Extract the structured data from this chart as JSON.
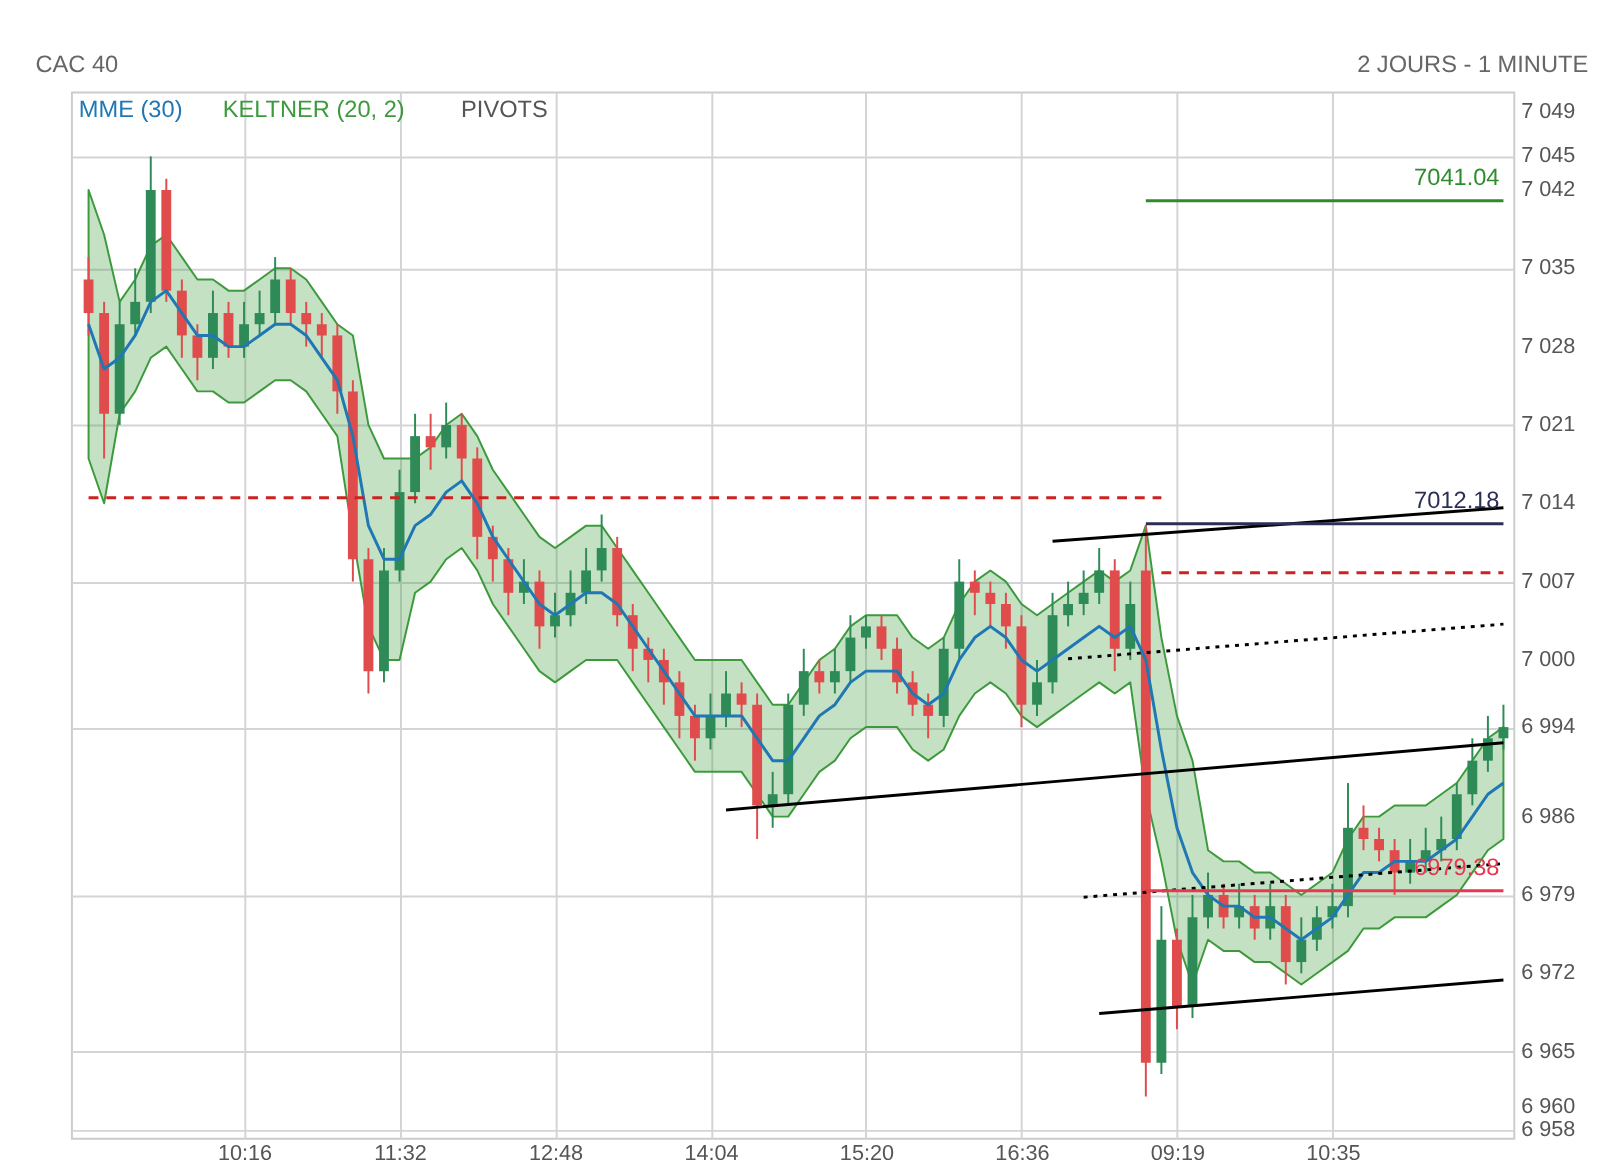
{
  "chart_data": {
    "type": "candlestick",
    "title": "CAC 40",
    "subtitle": "2 JOURS - 1 MINUTE",
    "categories": [
      null,
      null,
      null,
      null,
      null,
      null,
      null,
      null,
      null,
      null,
      "10:16",
      null,
      null,
      null,
      null,
      null,
      null,
      null,
      null,
      null,
      "11:32",
      null,
      null,
      null,
      null,
      null,
      null,
      null,
      null,
      null,
      "12:48",
      null,
      null,
      null,
      null,
      null,
      null,
      null,
      null,
      null,
      "14:04",
      null,
      null,
      null,
      null,
      null,
      null,
      null,
      null,
      null,
      "15:20",
      null,
      null,
      null,
      null,
      null,
      null,
      null,
      null,
      null,
      "16:36",
      null,
      null,
      null,
      null,
      null,
      null,
      null,
      null,
      null,
      "09:19",
      null,
      null,
      null,
      null,
      null,
      null,
      null,
      null,
      null,
      "10:35",
      null,
      null,
      null,
      null,
      null,
      null,
      null,
      null,
      null,
      null,
      null
    ],
    "ohlc": [
      [
        7034,
        7036,
        7029,
        7031
      ],
      [
        7031,
        7032,
        7018,
        7022
      ],
      [
        7022,
        7032,
        7021,
        7030
      ],
      [
        7030,
        7035,
        7029,
        7032
      ],
      [
        7032,
        7045,
        7031,
        7042
      ],
      [
        7042,
        7043,
        7032,
        7033
      ],
      [
        7033,
        7034,
        7027,
        7029
      ],
      [
        7029,
        7030,
        7025,
        7027
      ],
      [
        7027,
        7033,
        7026,
        7031
      ],
      [
        7031,
        7032,
        7027,
        7028
      ],
      [
        7028,
        7032,
        7027,
        7030
      ],
      [
        7030,
        7033,
        7029,
        7031
      ],
      [
        7031,
        7036,
        7030,
        7034
      ],
      [
        7034,
        7035,
        7030,
        7031
      ],
      [
        7031,
        7032,
        7028,
        7030
      ],
      [
        7030,
        7031,
        7027,
        7029
      ],
      [
        7029,
        7030,
        7022,
        7024
      ],
      [
        7024,
        7025,
        7007,
        7009
      ],
      [
        7009,
        7010,
        6997,
        6999
      ],
      [
        6999,
        7010,
        6998,
        7008
      ],
      [
        7008,
        7017,
        7007,
        7015
      ],
      [
        7015,
        7022,
        7014,
        7020
      ],
      [
        7020,
        7022,
        7017,
        7019
      ],
      [
        7019,
        7023,
        7018,
        7021
      ],
      [
        7021,
        7022,
        7016,
        7018
      ],
      [
        7018,
        7019,
        7009,
        7011
      ],
      [
        7011,
        7012,
        7007,
        7009
      ],
      [
        7009,
        7010,
        7004,
        7006
      ],
      [
        7006,
        7009,
        7005,
        7007
      ],
      [
        7007,
        7008,
        7001,
        7003
      ],
      [
        7003,
        7006,
        7002,
        7004
      ],
      [
        7004,
        7008,
        7003,
        7006
      ],
      [
        7006,
        7010,
        7005,
        7008
      ],
      [
        7008,
        7013,
        7007,
        7010
      ],
      [
        7010,
        7011,
        7003,
        7004
      ],
      [
        7004,
        7005,
        6999,
        7001
      ],
      [
        7001,
        7002,
        6998,
        7000
      ],
      [
        7000,
        7001,
        6996,
        6998
      ],
      [
        6998,
        6999,
        6993,
        6995
      ],
      [
        6995,
        6996,
        6991,
        6993
      ],
      [
        6993,
        6997,
        6992,
        6995
      ],
      [
        6995,
        6999,
        6994,
        6997
      ],
      [
        6997,
        6998,
        6994,
        6996
      ],
      [
        6996,
        6997,
        6984,
        6987
      ],
      [
        6987,
        6990,
        6985,
        6988
      ],
      [
        6988,
        6997,
        6987,
        6996
      ],
      [
        6996,
        7001,
        6995,
        6999
      ],
      [
        6999,
        7000,
        6997,
        6998
      ],
      [
        6998,
        7001,
        6997,
        6999
      ],
      [
        6999,
        7004,
        6998,
        7002
      ],
      [
        7002,
        7004,
        7001,
        7003
      ],
      [
        7003,
        7004,
        7000,
        7001
      ],
      [
        7001,
        7002,
        6997,
        6998
      ],
      [
        6998,
        6999,
        6995,
        6996
      ],
      [
        6996,
        6997,
        6993,
        6995
      ],
      [
        6995,
        7002,
        6994,
        7001
      ],
      [
        7001,
        7009,
        7000,
        7007
      ],
      [
        7007,
        7008,
        7004,
        7006
      ],
      [
        7006,
        7007,
        7003,
        7005
      ],
      [
        7005,
        7006,
        7001,
        7003
      ],
      [
        7003,
        7004,
        6994,
        6996
      ],
      [
        6996,
        7000,
        6995,
        6998
      ],
      [
        6998,
        7006,
        6997,
        7004
      ],
      [
        7004,
        7007,
        7003,
        7005
      ],
      [
        7005,
        7008,
        7004,
        7006
      ],
      [
        7006,
        7010,
        7005,
        7008
      ],
      [
        7008,
        7009,
        6999,
        7001
      ],
      [
        7001,
        7007,
        7000,
        7005
      ],
      [
        7008,
        7012,
        6961,
        6964
      ],
      [
        6964,
        6978,
        6963,
        6975
      ],
      [
        6975,
        6976,
        6967,
        6969
      ],
      [
        6969,
        6979,
        6968,
        6977
      ],
      [
        6977,
        6981,
        6976,
        6979
      ],
      [
        6979,
        6980,
        6976,
        6977
      ],
      [
        6977,
        6980,
        6976,
        6978
      ],
      [
        6978,
        6979,
        6975,
        6976
      ],
      [
        6976,
        6980,
        6975,
        6978
      ],
      [
        6978,
        6979,
        6971,
        6973
      ],
      [
        6973,
        6977,
        6972,
        6975
      ],
      [
        6975,
        6978,
        6974,
        6977
      ],
      [
        6977,
        6980,
        6976,
        6978
      ],
      [
        6978,
        6989,
        6977,
        6985
      ],
      [
        6985,
        6987,
        6983,
        6984
      ],
      [
        6984,
        6985,
        6982,
        6983
      ],
      [
        6983,
        6984,
        6979,
        6981
      ],
      [
        6981,
        6984,
        6980,
        6982
      ],
      [
        6982,
        6985,
        6981,
        6983
      ],
      [
        6983,
        6986,
        6982,
        6984
      ],
      [
        6984,
        6989,
        6983,
        6988
      ],
      [
        6988,
        6993,
        6987,
        6991
      ],
      [
        6991,
        6995,
        6990,
        6993
      ],
      [
        6993,
        6996,
        6992,
        6994
      ]
    ],
    "colors": [
      "#e04b4b",
      "#e04b4b",
      "#2e8b57",
      "#2e8b57",
      "#2e8b57",
      "#e04b4b",
      "#e04b4b",
      "#e04b4b",
      "#2e8b57",
      "#e04b4b",
      "#2e8b57",
      "#2e8b57",
      "#2e8b57",
      "#e04b4b",
      "#e04b4b",
      "#e04b4b",
      "#e04b4b",
      "#e04b4b",
      "#e04b4b",
      "#2e8b57",
      "#2e8b57",
      "#2e8b57",
      "#e04b4b",
      "#2e8b57",
      "#e04b4b",
      "#e04b4b",
      "#e04b4b",
      "#e04b4b",
      "#2e8b57",
      "#e04b4b",
      "#2e8b57",
      "#2e8b57",
      "#2e8b57",
      "#2e8b57",
      "#e04b4b",
      "#e04b4b",
      "#e04b4b",
      "#e04b4b",
      "#e04b4b",
      "#e04b4b",
      "#2e8b57",
      "#2e8b57",
      "#e04b4b",
      "#e04b4b",
      "#2e8b57",
      "#2e8b57",
      "#2e8b57",
      "#e04b4b",
      "#2e8b57",
      "#2e8b57",
      "#2e8b57",
      "#e04b4b",
      "#e04b4b",
      "#e04b4b",
      "#e04b4b",
      "#2e8b57",
      "#2e8b57",
      "#e04b4b",
      "#e04b4b",
      "#e04b4b",
      "#e04b4b",
      "#2e8b57",
      "#2e8b57",
      "#2e8b57",
      "#2e8b57",
      "#2e8b57",
      "#e04b4b",
      "#2e8b57",
      "#e04b4b",
      "#2e8b57",
      "#e04b4b",
      "#2e8b57",
      "#2e8b57",
      "#e04b4b",
      "#2e8b57",
      "#e04b4b",
      "#2e8b57",
      "#e04b4b",
      "#2e8b57",
      "#2e8b57",
      "#2e8b57",
      "#2e8b57",
      "#e04b4b",
      "#e04b4b",
      "#e04b4b",
      "#2e8b57",
      "#2e8b57",
      "#2e8b57",
      "#2e8b57",
      "#2e8b57",
      "#2e8b57",
      "#2e8b57"
    ],
    "series": [
      {
        "name": "MME (30)",
        "type": "line",
        "color": "#1f77b4",
        "values": [
          7030,
          7026,
          7027,
          7029,
          7032,
          7033,
          7031,
          7029,
          7029,
          7028,
          7028,
          7029,
          7030,
          7030,
          7029,
          7027,
          7025,
          7020,
          7012,
          7009,
          7009,
          7012,
          7013,
          7015,
          7016,
          7014,
          7011,
          7009,
          7007,
          7005,
          7004,
          7005,
          7006,
          7006,
          7005,
          7003,
          7001,
          6999,
          6997,
          6995,
          6995,
          6995,
          6995,
          6993,
          6991,
          6991,
          6993,
          6995,
          6996,
          6998,
          6999,
          6999,
          6999,
          6997,
          6996,
          6997,
          7000,
          7002,
          7003,
          7002,
          7000,
          6999,
          7000,
          7001,
          7002,
          7003,
          7002,
          7003,
          7000,
          6992,
          6985,
          6981,
          6979,
          6978,
          6978,
          6977,
          6977,
          6976,
          6975,
          6976,
          6977,
          6979,
          6981,
          6981,
          6982,
          6982,
          6982,
          6983,
          6984,
          6986,
          6988,
          6989
        ]
      },
      {
        "name": "KELTNER (20, 2)",
        "type": "area",
        "color": "#3c9a3c",
        "values": [
          null,
          null,
          null,
          null,
          null,
          null,
          null,
          null,
          null,
          null,
          null,
          null,
          null,
          null,
          null,
          null,
          null,
          null,
          null,
          null,
          null,
          null,
          null,
          null,
          null,
          null,
          null,
          null,
          null,
          null,
          null,
          null,
          null,
          null,
          null,
          null,
          null,
          null,
          null,
          null,
          null,
          null,
          null,
          null,
          null,
          null,
          null,
          null,
          null,
          null,
          null,
          null,
          null,
          null,
          null,
          null,
          null,
          null,
          null,
          null,
          null,
          null,
          null,
          null,
          null,
          null,
          null,
          null,
          null,
          null,
          null,
          null,
          null,
          null,
          null,
          null,
          null,
          null,
          null,
          null,
          null,
          null,
          null,
          null,
          null,
          null,
          null,
          null,
          null,
          null,
          null,
          null
        ],
        "upper": [
          7042,
          7038,
          7032,
          7034,
          7037,
          7038,
          7036,
          7034,
          7034,
          7033,
          7033,
          7034,
          7035,
          7035,
          7034,
          7032,
          7030,
          7029,
          7021,
          7018,
          7018,
          7018,
          7019,
          7021,
          7022,
          7020,
          7017,
          7015,
          7013,
          7011,
          7010,
          7011,
          7012,
          7012,
          7010,
          7008,
          7006,
          7004,
          7002,
          7000,
          7000,
          7000,
          7000,
          6998,
          6996,
          6996,
          6998,
          7000,
          7001,
          7003,
          7004,
          7004,
          7004,
          7002,
          7001,
          7002,
          7005,
          7007,
          7008,
          7007,
          7005,
          7004,
          7005,
          7006,
          7007,
          7008,
          7007,
          7008,
          7012,
          7002,
          6995,
          6991,
          6983,
          6982,
          6982,
          6981,
          6981,
          6980,
          6979,
          6980,
          6981,
          6984,
          6986,
          6986,
          6987,
          6987,
          6987,
          6988,
          6989,
          6991,
          6993,
          6994
        ],
        "lower": [
          7018,
          7014,
          7022,
          7024,
          7027,
          7028,
          7026,
          7024,
          7024,
          7023,
          7023,
          7024,
          7025,
          7025,
          7024,
          7022,
          7020,
          7011,
          7003,
          7000,
          7000,
          7006,
          7007,
          7009,
          7010,
          7008,
          7005,
          7003,
          7001,
          6999,
          6998,
          6999,
          7000,
          7000,
          7000,
          6998,
          6996,
          6994,
          6992,
          6990,
          6990,
          6990,
          6990,
          6988,
          6986,
          6986,
          6988,
          6990,
          6991,
          6993,
          6994,
          6994,
          6994,
          6992,
          6991,
          6992,
          6995,
          6997,
          6998,
          6997,
          6995,
          6994,
          6995,
          6996,
          6997,
          6998,
          6997,
          6998,
          6988,
          6982,
          6975,
          6971,
          6975,
          6974,
          6974,
          6973,
          6973,
          6972,
          6971,
          6972,
          6973,
          6974,
          6976,
          6976,
          6977,
          6977,
          6977,
          6978,
          6979,
          6981,
          6983,
          6984
        ]
      },
      {
        "type": "line",
        "color": "#000000",
        "values": [
          null,
          null,
          null,
          null,
          null,
          null,
          null,
          null,
          null,
          null,
          null,
          null,
          null,
          null,
          null,
          null,
          null,
          null,
          null,
          null,
          null,
          null,
          null,
          null,
          null,
          null,
          null,
          null,
          null,
          null,
          null,
          null,
          null,
          null,
          null,
          null,
          null,
          null,
          null,
          null,
          null,
          null,
          null,
          null,
          null,
          null,
          null,
          null,
          null,
          null,
          null,
          null,
          null,
          null,
          null,
          null,
          null,
          null,
          null,
          null,
          null,
          null,
          7010.6,
          null,
          null,
          null,
          null,
          null,
          null,
          null,
          null,
          null,
          null,
          null,
          null,
          null,
          null,
          null,
          null,
          null,
          null,
          null,
          null,
          null,
          null,
          null,
          null,
          null,
          null,
          null,
          null,
          7013.6
        ]
      },
      {
        "type": "line",
        "color": "#000000",
        "values": [
          null,
          null,
          null,
          null,
          null,
          null,
          null,
          null,
          null,
          null,
          null,
          null,
          null,
          null,
          null,
          null,
          null,
          null,
          null,
          null,
          null,
          null,
          null,
          null,
          null,
          null,
          null,
          null,
          null,
          null,
          null,
          null,
          null,
          null,
          null,
          null,
          null,
          null,
          null,
          null,
          null,
          null,
          null,
          null,
          null,
          null,
          null,
          null,
          null,
          null,
          null,
          null,
          null,
          null,
          null,
          null,
          null,
          null,
          null,
          null,
          null,
          null,
          null,
          null,
          null,
          6968.4,
          null,
          null,
          null,
          null,
          null,
          null,
          null,
          null,
          null,
          null,
          null,
          null,
          null,
          null,
          null,
          null,
          null,
          null,
          null,
          null,
          null,
          null,
          null,
          null,
          null,
          6971.4
        ]
      },
      {
        "type": "line",
        "color": "#000000",
        "values": [
          null,
          null,
          null,
          null,
          null,
          null,
          null,
          null,
          null,
          null,
          null,
          null,
          null,
          null,
          null,
          null,
          null,
          null,
          null,
          null,
          null,
          null,
          null,
          null,
          null,
          null,
          null,
          null,
          null,
          null,
          null,
          null,
          null,
          null,
          null,
          null,
          null,
          null,
          null,
          null,
          null,
          6986.6,
          null,
          null,
          null,
          null,
          null,
          null,
          null,
          null,
          null,
          null,
          null,
          null,
          null,
          null,
          null,
          null,
          null,
          null,
          null,
          null,
          null,
          null,
          null,
          null,
          null,
          null,
          null,
          null,
          null,
          null,
          null,
          null,
          null,
          null,
          null,
          null,
          null,
          null,
          null,
          null,
          null,
          null,
          null,
          null,
          null,
          null,
          null,
          null,
          null,
          6992.6
        ]
      },
      {
        "type": "line",
        "color": "#000000",
        "line_style": "dotted",
        "values": [
          null,
          null,
          null,
          null,
          null,
          null,
          null,
          null,
          null,
          null,
          null,
          null,
          null,
          null,
          null,
          null,
          null,
          null,
          null,
          null,
          null,
          null,
          null,
          null,
          null,
          null,
          null,
          null,
          null,
          null,
          null,
          null,
          null,
          null,
          null,
          null,
          null,
          null,
          null,
          null,
          null,
          null,
          null,
          null,
          null,
          null,
          null,
          null,
          null,
          null,
          null,
          null,
          null,
          null,
          null,
          null,
          null,
          null,
          null,
          null,
          null,
          null,
          null,
          7000.1,
          null,
          null,
          null,
          null,
          null,
          null,
          null,
          null,
          null,
          null,
          null,
          null,
          null,
          null,
          null,
          null,
          null,
          null,
          null,
          null,
          null,
          null,
          null,
          null,
          null,
          null,
          null,
          7003.2
        ]
      },
      {
        "type": "line",
        "color": "#000000",
        "line_style": "dotted",
        "values": [
          null,
          null,
          null,
          null,
          null,
          null,
          null,
          null,
          null,
          null,
          null,
          null,
          null,
          null,
          null,
          null,
          null,
          null,
          null,
          null,
          null,
          null,
          null,
          null,
          null,
          null,
          null,
          null,
          null,
          null,
          null,
          null,
          null,
          null,
          null,
          null,
          null,
          null,
          null,
          null,
          null,
          null,
          null,
          null,
          null,
          null,
          null,
          null,
          null,
          null,
          null,
          null,
          null,
          null,
          null,
          null,
          null,
          null,
          null,
          null,
          null,
          null,
          null,
          null,
          6978.8,
          null,
          null,
          null,
          null,
          null,
          null,
          null,
          null,
          null,
          null,
          null,
          null,
          null,
          null,
          null,
          null,
          null,
          null,
          null,
          null,
          null,
          null,
          null,
          null,
          null,
          null,
          6981.8
        ]
      },
      {
        "type": "line",
        "color": "#2e8b2e",
        "values": [
          null,
          null,
          null,
          null,
          null,
          null,
          null,
          null,
          null,
          null,
          null,
          null,
          null,
          null,
          null,
          null,
          null,
          null,
          null,
          null,
          null,
          null,
          null,
          null,
          null,
          null,
          null,
          null,
          null,
          null,
          null,
          null,
          null,
          null,
          null,
          null,
          null,
          null,
          null,
          null,
          null,
          null,
          null,
          null,
          null,
          null,
          null,
          null,
          null,
          null,
          null,
          null,
          null,
          null,
          null,
          null,
          null,
          null,
          null,
          null,
          null,
          null,
          null,
          null,
          null,
          null,
          null,
          null,
          7041.04,
          null,
          null,
          null,
          null,
          null,
          null,
          null,
          null,
          null,
          null,
          null,
          null,
          null,
          null,
          null,
          null,
          null,
          null,
          null,
          null,
          null,
          null,
          7041.04
        ],
        "value_labels": [
          null,
          null,
          null,
          null,
          null,
          null,
          null,
          null,
          null,
          null,
          null,
          null,
          null,
          null,
          null,
          null,
          null,
          null,
          null,
          null,
          null,
          null,
          null,
          null,
          null,
          null,
          null,
          null,
          null,
          null,
          null,
          null,
          null,
          null,
          null,
          null,
          null,
          null,
          null,
          null,
          null,
          null,
          null,
          null,
          null,
          null,
          null,
          null,
          null,
          null,
          null,
          null,
          null,
          null,
          null,
          null,
          null,
          null,
          null,
          null,
          null,
          null,
          null,
          null,
          null,
          null,
          null,
          null,
          null,
          null,
          null,
          null,
          null,
          null,
          null,
          null,
          null,
          null,
          null,
          null,
          null,
          null,
          null,
          null,
          null,
          null,
          null,
          null,
          null,
          null,
          null,
          "7041.04"
        ]
      },
      {
        "type": "line",
        "color": "#2b2f55",
        "values": [
          null,
          null,
          null,
          null,
          null,
          null,
          null,
          null,
          null,
          null,
          null,
          null,
          null,
          null,
          null,
          null,
          null,
          null,
          null,
          null,
          null,
          null,
          null,
          null,
          null,
          null,
          null,
          null,
          null,
          null,
          null,
          null,
          null,
          null,
          null,
          null,
          null,
          null,
          null,
          null,
          null,
          null,
          null,
          null,
          null,
          null,
          null,
          null,
          null,
          null,
          null,
          null,
          null,
          null,
          null,
          null,
          null,
          null,
          null,
          null,
          null,
          null,
          null,
          null,
          null,
          null,
          null,
          null,
          7012.18,
          null,
          null,
          null,
          null,
          null,
          null,
          null,
          null,
          null,
          null,
          null,
          null,
          null,
          null,
          null,
          null,
          null,
          null,
          null,
          null,
          null,
          null,
          7012.18
        ],
        "value_labels": [
          null,
          null,
          null,
          null,
          null,
          null,
          null,
          null,
          null,
          null,
          null,
          null,
          null,
          null,
          null,
          null,
          null,
          null,
          null,
          null,
          null,
          null,
          null,
          null,
          null,
          null,
          null,
          null,
          null,
          null,
          null,
          null,
          null,
          null,
          null,
          null,
          null,
          null,
          null,
          null,
          null,
          null,
          null,
          null,
          null,
          null,
          null,
          null,
          null,
          null,
          null,
          null,
          null,
          null,
          null,
          null,
          null,
          null,
          null,
          null,
          null,
          null,
          null,
          null,
          null,
          null,
          null,
          null,
          null,
          null,
          null,
          null,
          null,
          null,
          null,
          null,
          null,
          null,
          null,
          null,
          null,
          null,
          null,
          null,
          null,
          null,
          null,
          null,
          null,
          null,
          null,
          "7012.18"
        ]
      },
      {
        "type": "line",
        "color": "#e8384f",
        "values": [
          null,
          null,
          null,
          null,
          null,
          null,
          null,
          null,
          null,
          null,
          null,
          null,
          null,
          null,
          null,
          null,
          null,
          null,
          null,
          null,
          null,
          null,
          null,
          null,
          null,
          null,
          null,
          null,
          null,
          null,
          null,
          null,
          null,
          null,
          null,
          null,
          null,
          null,
          null,
          null,
          null,
          null,
          null,
          null,
          null,
          null,
          null,
          null,
          null,
          null,
          null,
          null,
          null,
          null,
          null,
          null,
          null,
          null,
          null,
          null,
          null,
          null,
          null,
          null,
          null,
          null,
          null,
          null,
          6979.38,
          null,
          null,
          null,
          null,
          null,
          null,
          null,
          null,
          null,
          null,
          null,
          null,
          null,
          null,
          null,
          null,
          null,
          null,
          null,
          null,
          null,
          null,
          6979.38
        ],
        "value_labels": [
          null,
          null,
          null,
          null,
          null,
          null,
          null,
          null,
          null,
          null,
          null,
          null,
          null,
          null,
          null,
          null,
          null,
          null,
          null,
          null,
          null,
          null,
          null,
          null,
          null,
          null,
          null,
          null,
          null,
          null,
          null,
          null,
          null,
          null,
          null,
          null,
          null,
          null,
          null,
          null,
          null,
          null,
          null,
          null,
          null,
          null,
          null,
          null,
          null,
          null,
          null,
          null,
          null,
          null,
          null,
          null,
          null,
          null,
          null,
          null,
          null,
          null,
          null,
          null,
          null,
          null,
          null,
          null,
          null,
          null,
          null,
          null,
          null,
          null,
          null,
          null,
          null,
          null,
          null,
          null,
          null,
          null,
          null,
          null,
          null,
          null,
          null,
          null,
          null,
          null,
          null,
          "6979.38"
        ]
      },
      {
        "type": "line",
        "color": "#cc2222",
        "line_style": "dashed",
        "values": [
          7014.5,
          null,
          null,
          null,
          null,
          null,
          null,
          null,
          null,
          null,
          null,
          null,
          null,
          null,
          null,
          null,
          null,
          null,
          null,
          null,
          null,
          null,
          null,
          null,
          null,
          null,
          null,
          null,
          null,
          null,
          null,
          null,
          null,
          null,
          null,
          null,
          null,
          null,
          null,
          null,
          null,
          null,
          null,
          null,
          null,
          null,
          null,
          null,
          null,
          null,
          null,
          null,
          null,
          null,
          null,
          null,
          null,
          null,
          null,
          null,
          null,
          null,
          null,
          null,
          null,
          null,
          null,
          null,
          null,
          7014.5,
          null,
          null,
          null,
          null,
          null,
          null,
          null,
          null,
          null,
          null,
          null,
          null,
          null,
          null,
          null,
          null,
          null,
          null,
          null,
          null,
          null,
          null
        ]
      },
      {
        "type": "line",
        "color": "#cc2222",
        "line_style": "dashed",
        "values": [
          null,
          null,
          null,
          null,
          null,
          null,
          null,
          null,
          null,
          null,
          null,
          null,
          null,
          null,
          null,
          null,
          null,
          null,
          null,
          null,
          null,
          null,
          null,
          null,
          null,
          null,
          null,
          null,
          null,
          null,
          null,
          null,
          null,
          null,
          null,
          null,
          null,
          null,
          null,
          null,
          null,
          null,
          null,
          null,
          null,
          null,
          null,
          null,
          null,
          null,
          null,
          null,
          null,
          null,
          null,
          null,
          null,
          null,
          null,
          null,
          null,
          null,
          null,
          null,
          null,
          null,
          null,
          null,
          null,
          7007.8,
          null,
          null,
          null,
          null,
          null,
          null,
          null,
          null,
          null,
          null,
          null,
          null,
          null,
          null,
          null,
          null,
          null,
          null,
          null,
          null,
          null,
          7007.8
        ]
      }
    ],
    "annotations": [
      "PIVOTS"
    ],
    "ylim": [
      6957.3,
      7050.8
    ],
    "yticks": [
      {
        "value": 6958,
        "label": "6 958"
      },
      {
        "value": 6960,
        "label": "6 960"
      },
      {
        "value": 6965,
        "label": "6 965"
      },
      {
        "value": 6972,
        "label": "6 972"
      },
      {
        "value": 6979,
        "label": "6 979"
      },
      {
        "value": 6986,
        "label": "6 986"
      },
      {
        "value": 6994,
        "label": "6 994"
      },
      {
        "value": 7000,
        "label": "7 000"
      },
      {
        "value": 7007,
        "label": "7 007"
      },
      {
        "value": 7014,
        "label": "7 014"
      },
      {
        "value": 7021,
        "label": "7 021"
      },
      {
        "value": 7028,
        "label": "7 028"
      },
      {
        "value": 7035,
        "label": "7 035"
      },
      {
        "value": 7042,
        "label": "7 042"
      },
      {
        "value": 7045,
        "label": "7 045"
      },
      {
        "value": 7049,
        "label": "7 049"
      }
    ],
    "grid": true,
    "legend": "top left"
  }
}
